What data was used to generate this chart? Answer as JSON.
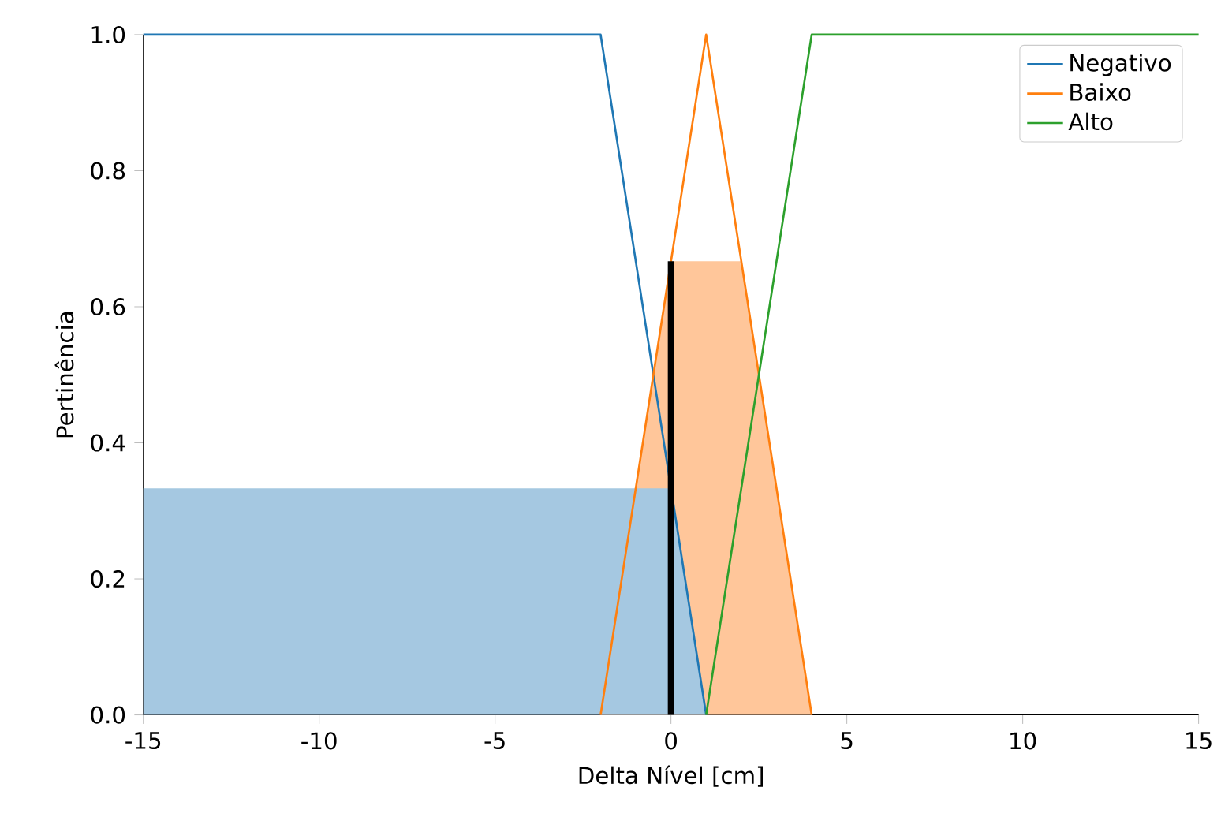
{
  "chart_data": {
    "type": "line",
    "xlabel": "Delta Nível [cm]",
    "ylabel": "Pertinência",
    "xlim": [
      -15,
      15
    ],
    "ylim": [
      0,
      1
    ],
    "xticks": [
      -15,
      -10,
      -5,
      0,
      5,
      10,
      15
    ],
    "yticks": [
      {
        "value": 0,
        "label": "0.0"
      },
      {
        "value": 0.2,
        "label": "0.2"
      },
      {
        "value": 0.4,
        "label": "0.4"
      },
      {
        "value": 0.6,
        "label": "0.6"
      },
      {
        "value": 0.8,
        "label": "0.8"
      },
      {
        "value": 1,
        "label": "1.0"
      }
    ],
    "legend": "top right",
    "series": [
      {
        "type": "area",
        "color": "#ffc69a",
        "x": [
          -2,
          0,
          2,
          4
        ],
        "values": [
          0,
          0.667,
          0.667,
          0
        ]
      },
      {
        "type": "area",
        "color": "#a5c8e1",
        "x": [
          -15,
          -15,
          0,
          1
        ],
        "values": [
          0,
          0.333,
          0.333,
          0
        ]
      },
      {
        "name": "Negativo",
        "color": "#1f77b4",
        "x": [
          -15,
          -2,
          1
        ],
        "values": [
          1,
          1,
          0
        ]
      },
      {
        "name": "Baixo",
        "color": "#ff7f0e",
        "x": [
          -2,
          1,
          4
        ],
        "values": [
          0,
          1,
          0
        ]
      },
      {
        "name": "Alto",
        "color": "#2ca02c",
        "x": [
          1,
          4,
          15
        ],
        "values": [
          0,
          1,
          1
        ]
      },
      {
        "color": "#000000",
        "x": [
          0,
          0
        ],
        "values": [
          0,
          0.667
        ]
      }
    ]
  }
}
